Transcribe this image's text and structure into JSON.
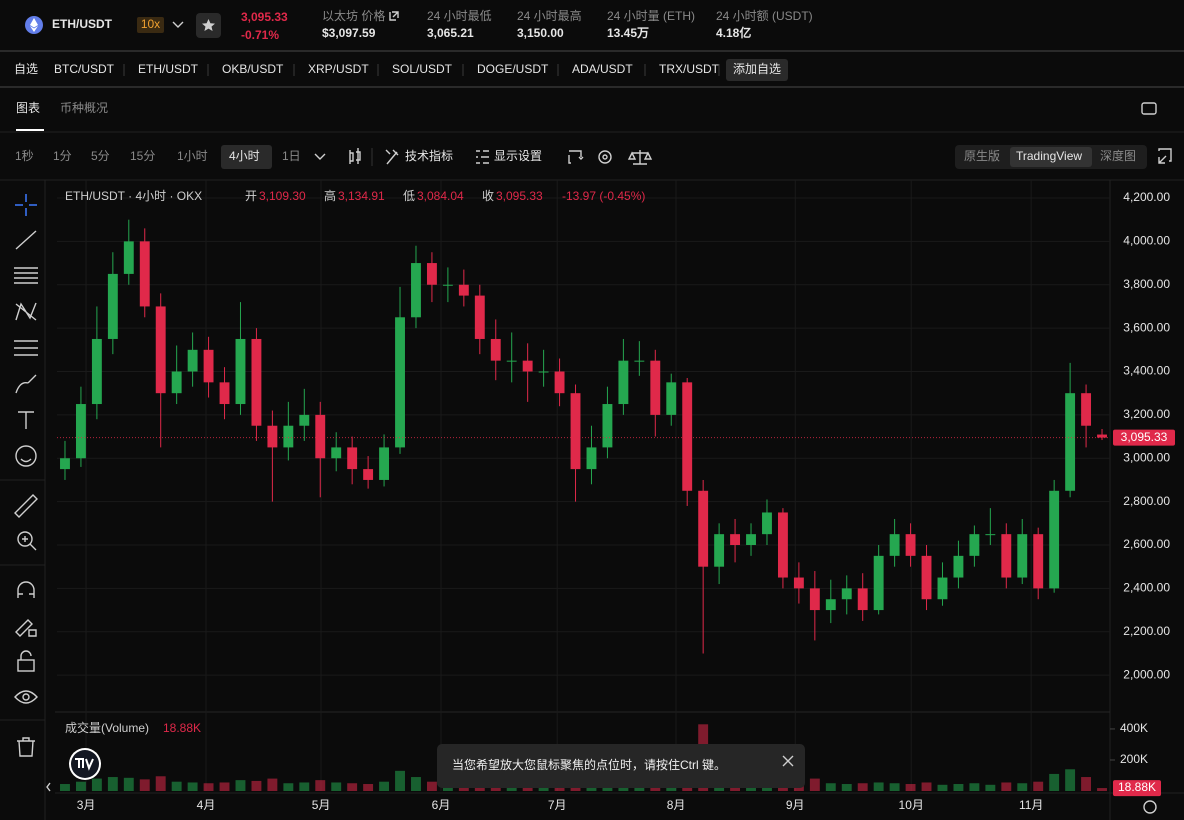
{
  "header": {
    "pair": "ETH/USDT",
    "leverage": "10x",
    "price": "3,095.33",
    "change": "-0.71%",
    "stats": [
      {
        "label": "以太坊 价格",
        "value": "$3,097.59"
      },
      {
        "label": "24 小时最低",
        "value": "3,065.21"
      },
      {
        "label": "24 小时最高",
        "value": "3,150.00"
      },
      {
        "label": "24 小时量 (ETH)",
        "value": "13.45万"
      },
      {
        "label": "24 小时额 (USDT)",
        "value": "4.18亿"
      }
    ]
  },
  "favorites": [
    "自选",
    "BTC/USDT",
    "ETH/USDT",
    "OKB/USDT",
    "XRP/USDT",
    "SOL/USDT",
    "DOGE/USDT",
    "ADA/USDT",
    "TRX/USDT",
    "添加自选"
  ],
  "tabs": [
    "图表",
    "币种概况"
  ],
  "intervals": [
    "1秒",
    "1分",
    "5分",
    "15分",
    "1小时",
    "4小时",
    "1日"
  ],
  "tools": [
    "技术指标",
    "显示设置"
  ],
  "views": [
    "原生版",
    "TradingView",
    "深度图"
  ],
  "toast": "当您希望放大您鼠标聚焦的点位时，请按住Ctrl 键。",
  "chart_data": {
    "type": "candlestick",
    "legend": {
      "title": "ETH/USDT · 4小时 · OKX",
      "items": [
        {
          "label": "开",
          "value": "3,109.30"
        },
        {
          "label": "高",
          "value": "3,134.91"
        },
        {
          "label": "低",
          "value": "3,084.04"
        },
        {
          "label": "收",
          "value": "3,095.33"
        }
      ],
      "change": "-13.97 (-0.45%)"
    },
    "last_price_label": "3,095.33",
    "volume_title": "成交量(Volume)",
    "volume_value_label": "18.88K",
    "up_color": "#25a750",
    "down_color": "#e0294a",
    "grid": true,
    "xlim": [
      0,
      66
    ],
    "xticks": [
      {
        "value": 1.82,
        "label": "3月"
      },
      {
        "value": 9.34,
        "label": "4月"
      },
      {
        "value": 16.55,
        "label": "5月"
      },
      {
        "value": 24.07,
        "label": "6月"
      },
      {
        "value": 31.35,
        "label": "7月"
      },
      {
        "value": 38.8,
        "label": "8月"
      },
      {
        "value": 46.27,
        "label": "9月"
      },
      {
        "value": 53.54,
        "label": "10月"
      },
      {
        "value": 61.06,
        "label": "11月"
      }
    ],
    "ylim": [
      1830,
      4283
    ],
    "yticks": [
      {
        "value": 2000,
        "label": "2,000.00"
      },
      {
        "value": 2200,
        "label": "2,200.00"
      },
      {
        "value": 2400,
        "label": "2,400.00"
      },
      {
        "value": 2600,
        "label": "2,600.00"
      },
      {
        "value": 2800,
        "label": "2,800.00"
      },
      {
        "value": 3000,
        "label": "3,000.00"
      },
      {
        "value": 3200,
        "label": "3,200.00"
      },
      {
        "value": 3400,
        "label": "3,400.00"
      },
      {
        "value": 3600,
        "label": "3,600.00"
      },
      {
        "value": 3800,
        "label": "3,800.00"
      },
      {
        "value": 4000,
        "label": "4,000.00"
      },
      {
        "value": 4200,
        "label": "4,200.00"
      }
    ],
    "volume_ylim": [
      0,
      490000
    ],
    "volume_ticks": [
      {
        "value": 200000,
        "label": "200K"
      },
      {
        "value": 400000,
        "label": "400K"
      }
    ],
    "open": [
      2950,
      3000,
      3250,
      3550,
      3850,
      4000,
      3700,
      3300,
      3400,
      3500,
      3350,
      3250,
      3550,
      3150,
      3050,
      3150,
      3200,
      3000,
      3050,
      2950,
      2900,
      3050,
      3650,
      3900,
      3800,
      3800,
      3750,
      3550,
      3450,
      3450,
      3400,
      3400,
      3300,
      2950,
      3050,
      3250,
      3450,
      3450,
      3200,
      3350,
      2850,
      2500,
      2650,
      2600,
      2650,
      2750,
      2450,
      2400,
      2300,
      2350,
      2400,
      2300,
      2550,
      2650,
      2550,
      2350,
      2450,
      2550,
      2650,
      2650,
      2450,
      2650,
      2400,
      2850,
      3300,
      3109.3
    ],
    "high": [
      3080,
      3330,
      3700,
      3950,
      4100,
      4060,
      3760,
      3520,
      3580,
      3560,
      3420,
      3720,
      3600,
      3220,
      3260,
      3320,
      3260,
      3120,
      3100,
      3010,
      3110,
      3790,
      3980,
      3950,
      3880,
      3870,
      3800,
      3640,
      3580,
      3530,
      3500,
      3460,
      3340,
      3150,
      3330,
      3550,
      3540,
      3500,
      3390,
      3370,
      2900,
      2700,
      2720,
      2700,
      2810,
      2770,
      2520,
      2480,
      2440,
      2460,
      2470,
      2600,
      2720,
      2700,
      2600,
      2520,
      2620,
      2690,
      2770,
      2700,
      2720,
      2680,
      2900,
      3440,
      3340,
      3134.91
    ],
    "low": [
      2900,
      2960,
      3180,
      3480,
      3800,
      3650,
      3050,
      3250,
      3330,
      3280,
      3180,
      3200,
      3080,
      2800,
      2990,
      3080,
      2820,
      2940,
      2880,
      2860,
      2870,
      3020,
      3600,
      3720,
      3720,
      3700,
      3480,
      3360,
      3350,
      3260,
      3330,
      3240,
      2800,
      2880,
      3000,
      3200,
      3380,
      3100,
      3150,
      2780,
      2100,
      2420,
      2520,
      2550,
      2600,
      2400,
      2330,
      2160,
      2240,
      2280,
      2250,
      2280,
      2500,
      2500,
      2300,
      2320,
      2400,
      2500,
      2600,
      2400,
      2420,
      2350,
      2380,
      2820,
      3050,
      3084.04
    ],
    "close": [
      3000,
      3250,
      3550,
      3850,
      4000,
      3700,
      3300,
      3400,
      3500,
      3350,
      3250,
      3550,
      3150,
      3050,
      3150,
      3200,
      3000,
      3050,
      2950,
      2900,
      3050,
      3650,
      3900,
      3800,
      3800,
      3750,
      3550,
      3450,
      3450,
      3400,
      3400,
      3300,
      2950,
      3050,
      3250,
      3450,
      3450,
      3200,
      3350,
      2850,
      2500,
      2650,
      2600,
      2650,
      2750,
      2450,
      2400,
      2300,
      2350,
      2400,
      2300,
      2550,
      2650,
      2550,
      2350,
      2450,
      2550,
      2650,
      2650,
      2450,
      2650,
      2400,
      2850,
      3300,
      3150,
      3095.33
    ],
    "volume": [
      45000,
      60000,
      80000,
      90000,
      85000,
      75000,
      95000,
      60000,
      55000,
      50000,
      55000,
      70000,
      65000,
      80000,
      50000,
      55000,
      70000,
      55000,
      50000,
      45000,
      60000,
      130000,
      90000,
      60000,
      50000,
      45000,
      55000,
      50000,
      45000,
      45000,
      40000,
      45000,
      80000,
      60000,
      55000,
      50000,
      45000,
      60000,
      55000,
      150000,
      430000,
      120000,
      70000,
      55000,
      50000,
      60000,
      55000,
      80000,
      50000,
      45000,
      50000,
      55000,
      50000,
      45000,
      55000,
      40000,
      45000,
      50000,
      40000,
      55000,
      50000,
      60000,
      110000,
      140000,
      90000,
      18880
    ]
  }
}
